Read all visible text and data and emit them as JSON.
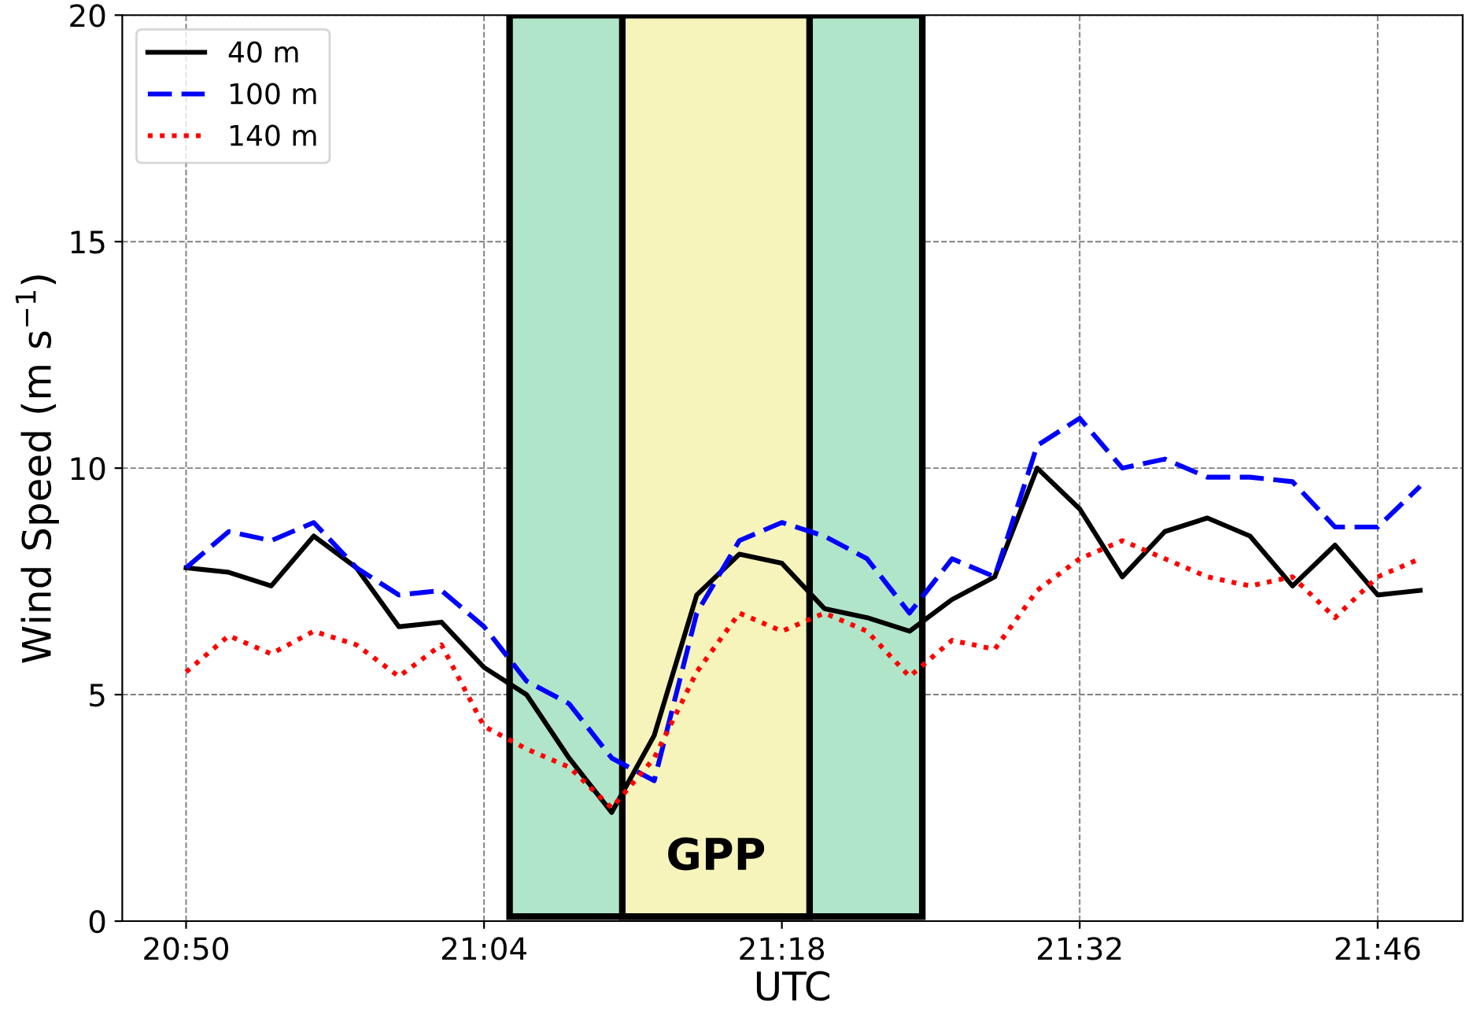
{
  "chart_data": {
    "type": "line",
    "xlabel": "UTC",
    "ylabel": "Wind Speed (m s$^{−1}$)",
    "x": [
      20.8333,
      20.8667,
      20.9,
      20.9333,
      20.9667,
      21.0,
      21.0333,
      21.0667,
      21.1,
      21.1333,
      21.1667,
      21.2,
      21.2333,
      21.2667,
      21.3,
      21.3333,
      21.3667,
      21.4,
      21.4333,
      21.4667,
      21.5,
      21.5333,
      21.5667,
      21.6,
      21.6333,
      21.6667,
      21.7,
      21.7333,
      21.7667,
      21.8
    ],
    "series": [
      {
        "name": "40 m",
        "color": "#000000",
        "line_style": "solid",
        "values": [
          7.8,
          7.7,
          7.4,
          8.5,
          7.8,
          6.5,
          6.6,
          5.6,
          5.0,
          3.6,
          2.4,
          4.1,
          7.2,
          8.1,
          7.9,
          6.9,
          6.7,
          6.4,
          7.1,
          7.6,
          10.0,
          9.1,
          7.6,
          8.6,
          8.9,
          8.5,
          7.4,
          8.3,
          7.2,
          7.3
        ]
      },
      {
        "name": "100 m",
        "color": "#0000ff",
        "line_style": "dashed",
        "values": [
          7.8,
          8.6,
          8.4,
          8.8,
          7.8,
          7.2,
          7.3,
          6.5,
          5.3,
          4.8,
          3.6,
          3.1,
          6.8,
          8.4,
          8.8,
          8.5,
          8.0,
          6.8,
          8.0,
          7.6,
          10.5,
          11.1,
          10.0,
          10.2,
          9.8,
          9.8,
          9.7,
          8.7,
          8.7,
          9.6
        ]
      },
      {
        "name": "140 m",
        "color": "#ff0000",
        "line_style": "dotted",
        "values": [
          5.5,
          6.3,
          5.9,
          6.4,
          6.1,
          5.4,
          6.1,
          4.3,
          3.8,
          3.4,
          2.5,
          3.6,
          5.5,
          6.8,
          6.4,
          6.8,
          6.4,
          5.4,
          6.2,
          6.0,
          7.3,
          8.0,
          8.4,
          8.0,
          7.6,
          7.4,
          7.6,
          6.7,
          7.6,
          8.0
        ]
      }
    ],
    "bands": [
      {
        "axis": "x",
        "from": 21.0867,
        "to": 21.41,
        "label": null,
        "color": "#b0e5c9"
      },
      {
        "axis": "x",
        "from": 21.175,
        "to": 21.3217,
        "label": "GPP",
        "color": "#f6f3bb"
      }
    ],
    "xlim": [
      20.7833,
      21.8333
    ],
    "ylim": [
      0,
      20
    ],
    "xticks": [
      {
        "value": 20.8333,
        "label": "20:50"
      },
      {
        "value": 21.0667,
        "label": "21:04"
      },
      {
        "value": 21.3,
        "label": "21:18"
      },
      {
        "value": 21.5333,
        "label": "21:32"
      },
      {
        "value": 21.7667,
        "label": "21:46"
      }
    ],
    "yticks": [
      0,
      5,
      10,
      15,
      20
    ],
    "grid": true,
    "legend": "top left"
  }
}
